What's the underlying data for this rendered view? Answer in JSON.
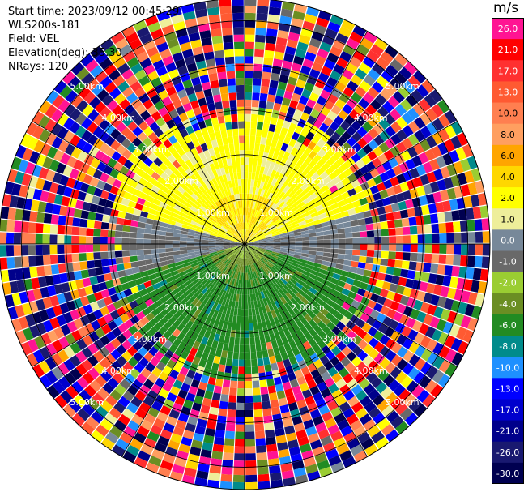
{
  "header": {
    "start_time": "Start time: 2023/09/12 00:45:29",
    "instrument": "WLS200s-181",
    "field": "Field: VEL",
    "elevation": "Elevation(deg): 35.30",
    "nrays": "NRays: 120"
  },
  "colorbar": {
    "unit": "m/s",
    "ticks": [
      "26.0",
      "21.0",
      "17.0",
      "13.0",
      "10.0",
      "8.0",
      "6.0",
      "4.0",
      "2.0",
      "1.0",
      "0.0",
      "-1.0",
      "-2.0",
      "-4.0",
      "-6.0",
      "-8.0",
      "-10.0",
      "-13.0",
      "-17.0",
      "-21.0",
      "-26.0",
      "-30.0"
    ],
    "colors": [
      "#ff1493",
      "#ff0000",
      "#ff3030",
      "#ff5a32",
      "#ff7f50",
      "#ff9f60",
      "#ffa500",
      "#ffd700",
      "#ffff00",
      "#eeee9a",
      "#778899",
      "#696969",
      "#9acd32",
      "#6b8e23",
      "#228b22",
      "#008b8b",
      "#1e90ff",
      "#0000ff",
      "#0000cd",
      "#00008b",
      "#191970",
      "#000050"
    ]
  },
  "chart_data": {
    "type": "heatmap",
    "subtype": "ppi-polar-radial-velocity",
    "field": "VEL",
    "unit": "m/s",
    "nrays": 120,
    "elevation_deg": 35.3,
    "range_ring_labels": [
      "1.00km",
      "2.00km",
      "3.00km",
      "4.00km",
      "5.00km"
    ],
    "range_rings_km": [
      1,
      2,
      3,
      4,
      5
    ],
    "max_range_km": 5.5,
    "color_scale": {
      "bounds": [
        -30,
        -26,
        -21,
        -17,
        -13,
        -10,
        -8,
        -6,
        -4,
        -2,
        -1,
        0,
        1,
        2,
        4,
        6,
        8,
        10,
        13,
        17,
        21,
        26,
        30
      ],
      "colors": [
        "#000050",
        "#191970",
        "#00008b",
        "#0000cd",
        "#0000ff",
        "#1e90ff",
        "#008b8b",
        "#228b22",
        "#6b8e23",
        "#9acd32",
        "#696969",
        "#778899",
        "#eeee9a",
        "#ffff00",
        "#ffd700",
        "#ffa500",
        "#ff9f60",
        "#ff7f50",
        "#ff5a32",
        "#ff3030",
        "#ff0000",
        "#ff1493"
      ]
    },
    "pattern": {
      "north_sector_core_ms": 2.5,
      "north_center_patch_ms": 4.5,
      "south_sector_core_ms": -5.0,
      "east_west_band_ms": 0.0,
      "noise_beyond_km": 3.0
    },
    "grid": true,
    "radial_spokes_deg": [
      0,
      30,
      60,
      90,
      120,
      150,
      180,
      210,
      240,
      270,
      300,
      330
    ]
  }
}
